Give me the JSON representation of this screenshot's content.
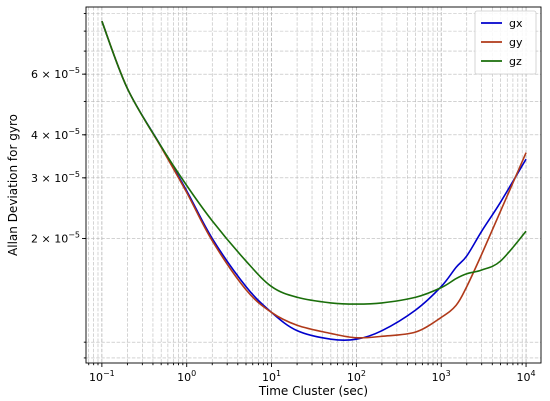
{
  "chart_data": {
    "type": "line",
    "xlabel": "Time Cluster (sec)",
    "ylabel": "Allan Deviation for gyro",
    "x_scale": "log",
    "y_scale": "log",
    "xlim": [
      0.065,
      15000
    ],
    "ylim": [
      8.7e-06,
      9.4e-05
    ],
    "grid": true,
    "legend_position": "top-right",
    "x_ticks": [
      {
        "value": 0.1,
        "base": "10",
        "exp": "−1"
      },
      {
        "value": 1,
        "base": "10",
        "exp": "0"
      },
      {
        "value": 10,
        "base": "10",
        "exp": "1"
      },
      {
        "value": 100,
        "base": "10",
        "exp": "2"
      },
      {
        "value": 1000,
        "base": "10",
        "exp": "3"
      },
      {
        "value": 10000,
        "base": "10",
        "exp": "4"
      }
    ],
    "y_ticks": [
      {
        "value": 2e-05,
        "mant": "2 × 10",
        "exp": "−5"
      },
      {
        "value": 3e-05,
        "mant": "3 × 10",
        "exp": "−5"
      },
      {
        "value": 4e-05,
        "mant": "4 × 10",
        "exp": "−5"
      },
      {
        "value": 6e-05,
        "mant": "6 × 10",
        "exp": "−5"
      }
    ],
    "series": [
      {
        "name": "gx",
        "color": "#0000cc",
        "x": [
          0.1,
          0.2,
          0.5,
          1,
          2,
          5,
          10,
          20,
          50,
          100,
          200,
          500,
          1000,
          1500,
          2000,
          3000,
          5000,
          10000
        ],
        "y": [
          8.55e-05,
          5.45e-05,
          3.7e-05,
          2.75e-05,
          2e-05,
          1.45e-05,
          1.22e-05,
          1.08e-05,
          1.02e-05,
          1.02e-05,
          1.08e-05,
          1.24e-05,
          1.45e-05,
          1.65e-05,
          1.78e-05,
          2.1e-05,
          2.55e-05,
          3.4e-05
        ]
      },
      {
        "name": "gy",
        "color": "#b03a1a",
        "x": [
          0.1,
          0.2,
          0.5,
          1,
          2,
          5,
          10,
          20,
          50,
          100,
          200,
          500,
          1000,
          1500,
          2000,
          3000,
          5000,
          10000
        ],
        "y": [
          8.55e-05,
          5.45e-05,
          3.68e-05,
          2.72e-05,
          1.97e-05,
          1.42e-05,
          1.22e-05,
          1.12e-05,
          1.06e-05,
          1.03e-05,
          1.04e-05,
          1.07e-05,
          1.18e-05,
          1.28e-05,
          1.45e-05,
          1.8e-05,
          2.4e-05,
          3.55e-05
        ]
      },
      {
        "name": "gz",
        "color": "#1a6e0a",
        "x": [
          0.1,
          0.2,
          0.5,
          1,
          2,
          5,
          10,
          20,
          50,
          100,
          200,
          500,
          1000,
          1500,
          2000,
          3000,
          5000,
          10000
        ],
        "y": [
          8.55e-05,
          5.45e-05,
          3.7e-05,
          2.85e-05,
          2.25e-05,
          1.72e-05,
          1.45e-05,
          1.35e-05,
          1.3e-05,
          1.29e-05,
          1.3e-05,
          1.35e-05,
          1.44e-05,
          1.53e-05,
          1.58e-05,
          1.62e-05,
          1.72e-05,
          2.1e-05
        ]
      }
    ]
  }
}
